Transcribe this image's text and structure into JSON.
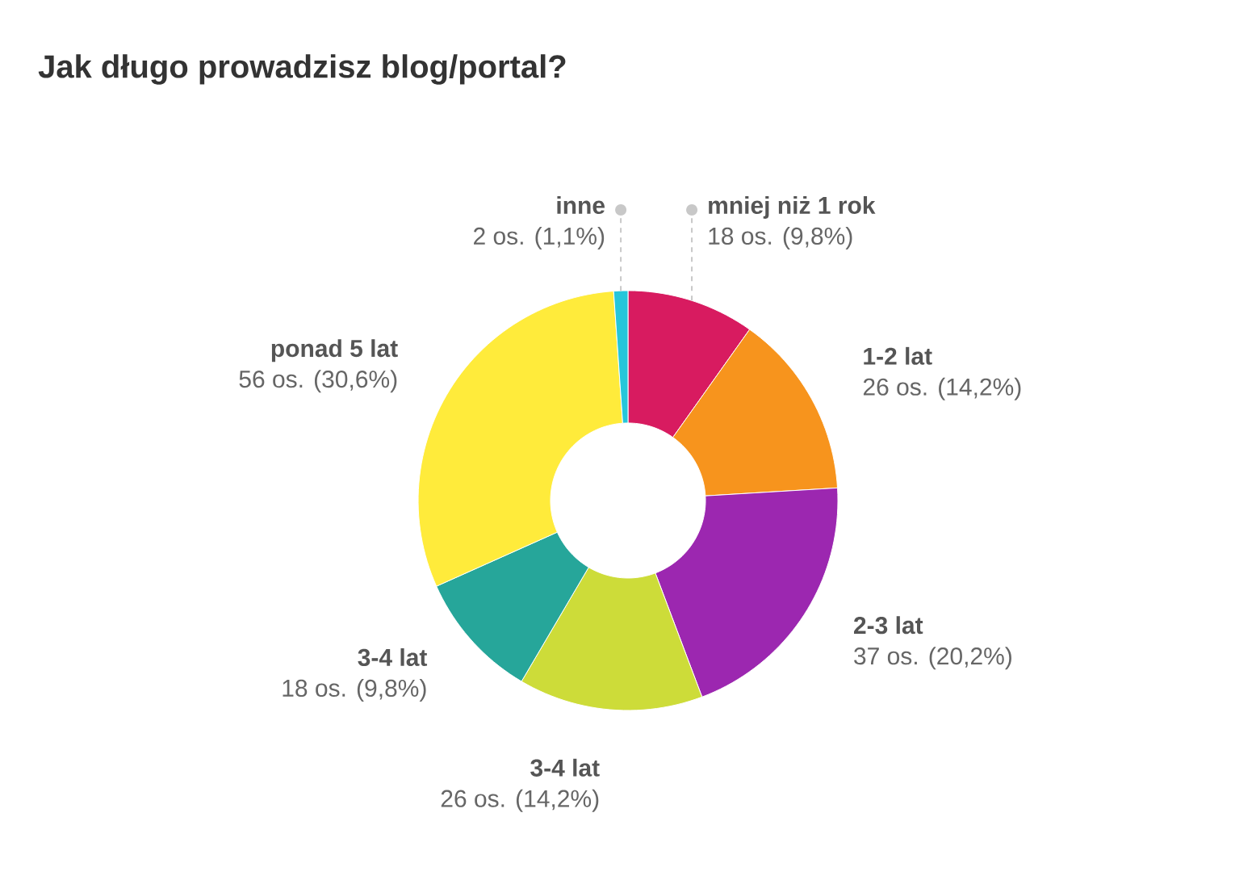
{
  "chart_data": {
    "type": "donut",
    "title": "Jak długo prowadzisz blog/portal?",
    "categories": [
      "mniej niż 1 rok",
      "1-2 lat",
      "2-3 lat",
      "3-4 lat",
      "3-4 lat",
      "ponad 5 lat",
      "inne"
    ],
    "values": [
      18,
      26,
      37,
      26,
      18,
      56,
      2
    ],
    "colors": [
      "#d81b60",
      "#f7941d",
      "#9c27b0",
      "#cddc39",
      "#26a69a",
      "#ffeb3b",
      "#26c6da"
    ],
    "value_labels": [
      "18 os. (9,8%)",
      "26 os. (14,2%)",
      "37 os. (20,2%)",
      "26 os. (14,2%)",
      "18 os. (9,8%)",
      "56 os. (30,6%)",
      "2 os. (1,1%)"
    ]
  }
}
